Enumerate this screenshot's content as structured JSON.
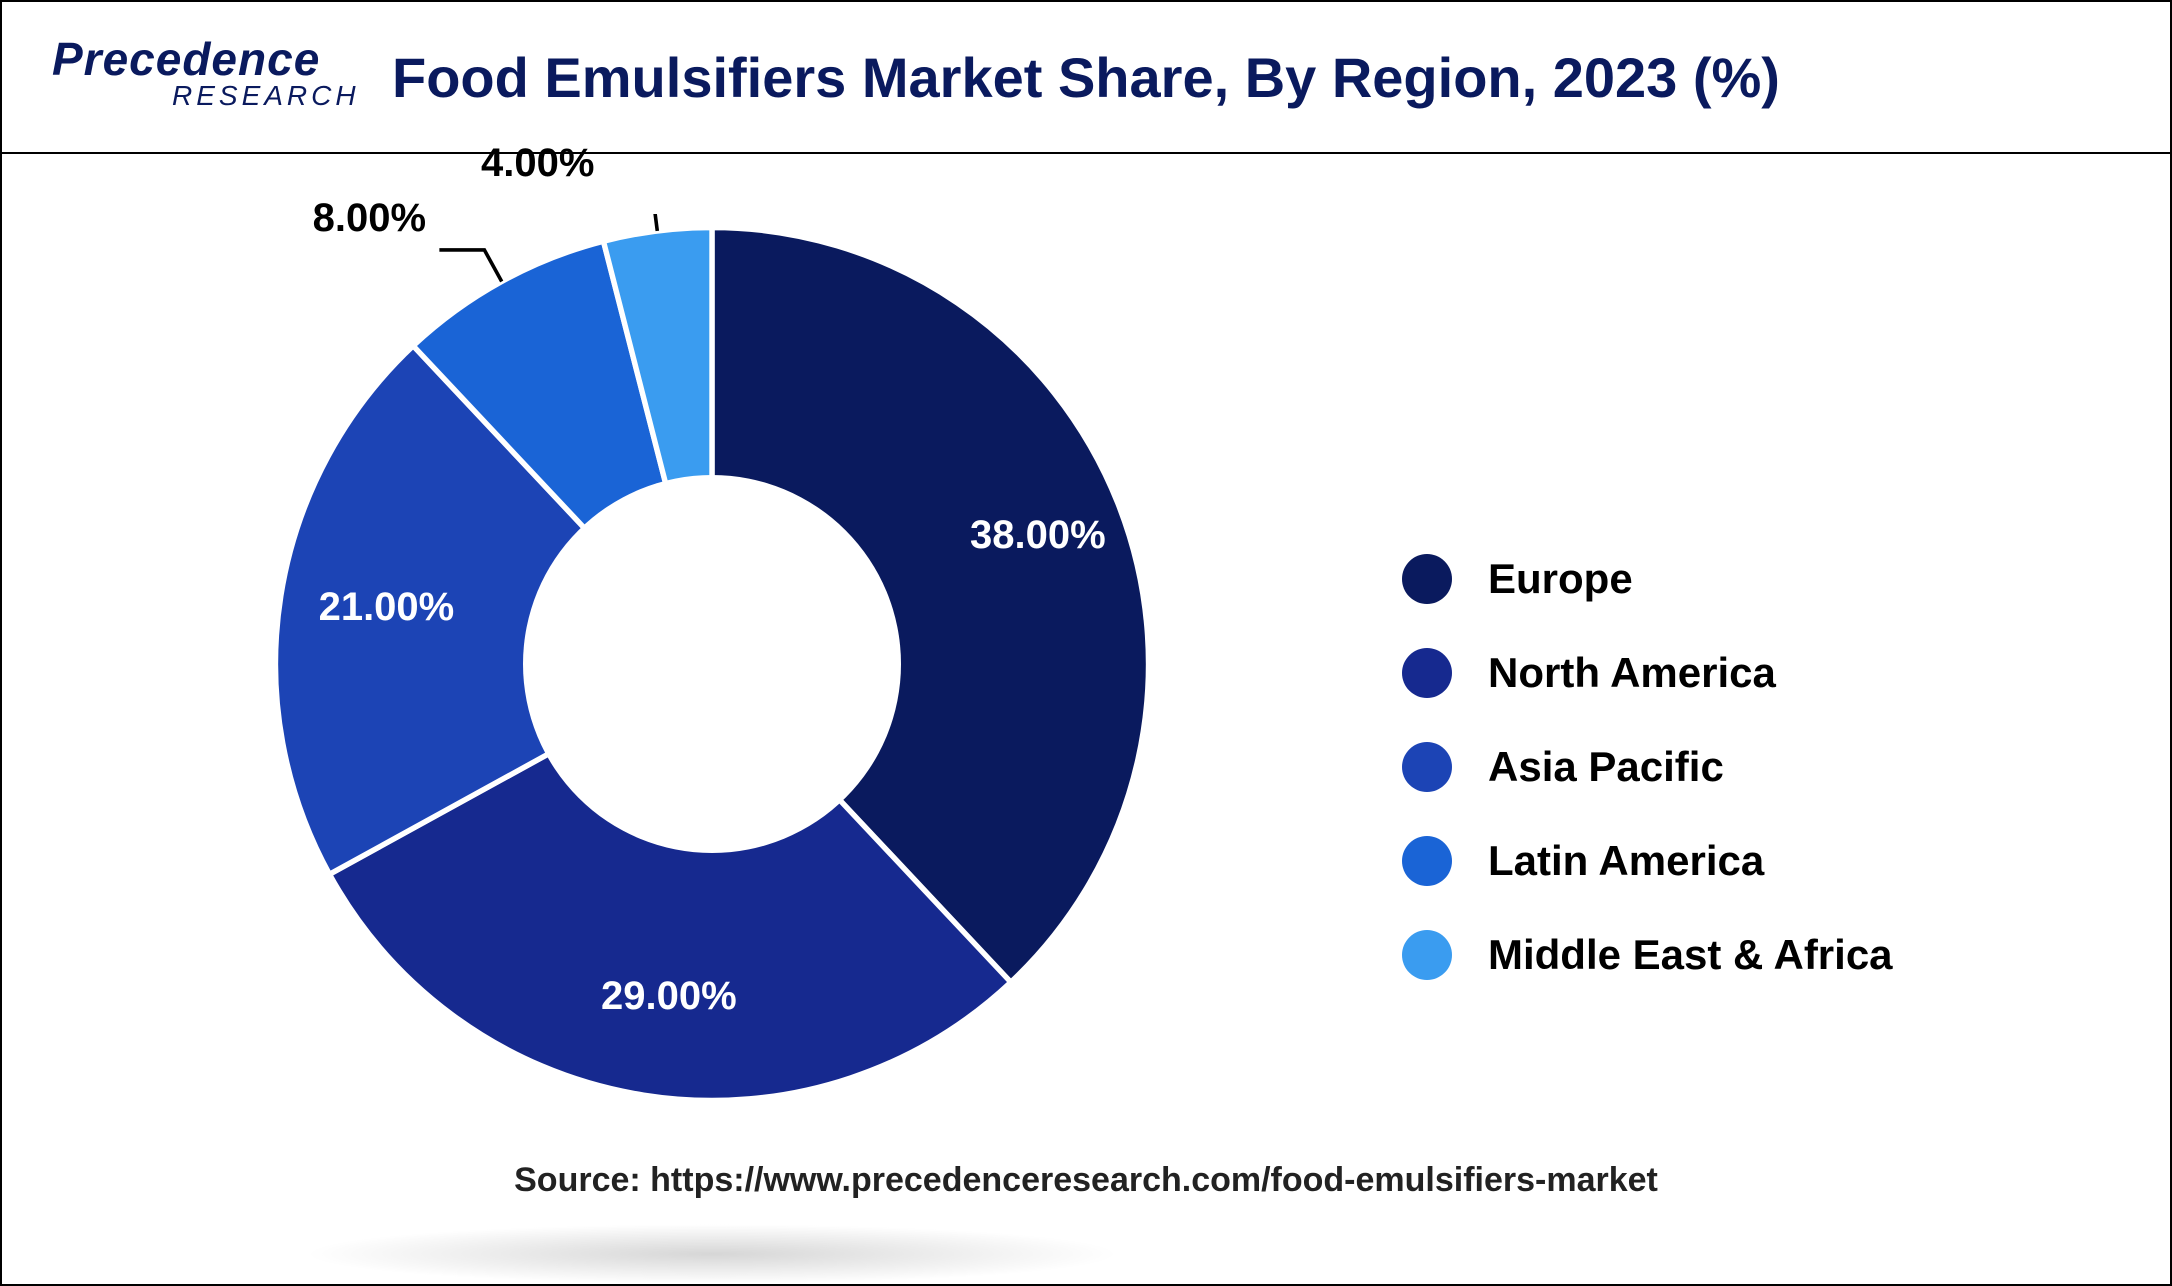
{
  "logo": {
    "main": "Precedence",
    "sub": "RESEARCH"
  },
  "title": "Food Emulsifiers Market Share, By Region, 2023 (%)",
  "chart": {
    "type": "donut",
    "background_color": "#ffffff",
    "inner_radius_ratio": 0.42,
    "slices": [
      {
        "label": "Europe",
        "value": 38.0,
        "pct_text": "38.00%",
        "color": "#0a1a5e"
      },
      {
        "label": "North America",
        "value": 29.0,
        "pct_text": "29.00%",
        "color": "#16298f"
      },
      {
        "label": "Asia Pacific",
        "value": 21.0,
        "pct_text": "21.00%",
        "color": "#1c44b5"
      },
      {
        "label": "Latin America",
        "value": 8.0,
        "pct_text": "8.00%",
        "color": "#1a64d6"
      },
      {
        "label": "Middle East & Africa",
        "value": 4.0,
        "pct_text": "4.00%",
        "color": "#3a9cf0"
      }
    ],
    "label_fontsize": 40,
    "label_fontweight": 700,
    "title_color": "#0a1a5e",
    "title_fontsize": 56
  },
  "legend": {
    "fontsize": 42,
    "fontweight": 700,
    "swatch_shape": "circle",
    "swatch_size": 50
  },
  "source": "Source: https://www.precedenceresearch.com/food-emulsifiers-market"
}
